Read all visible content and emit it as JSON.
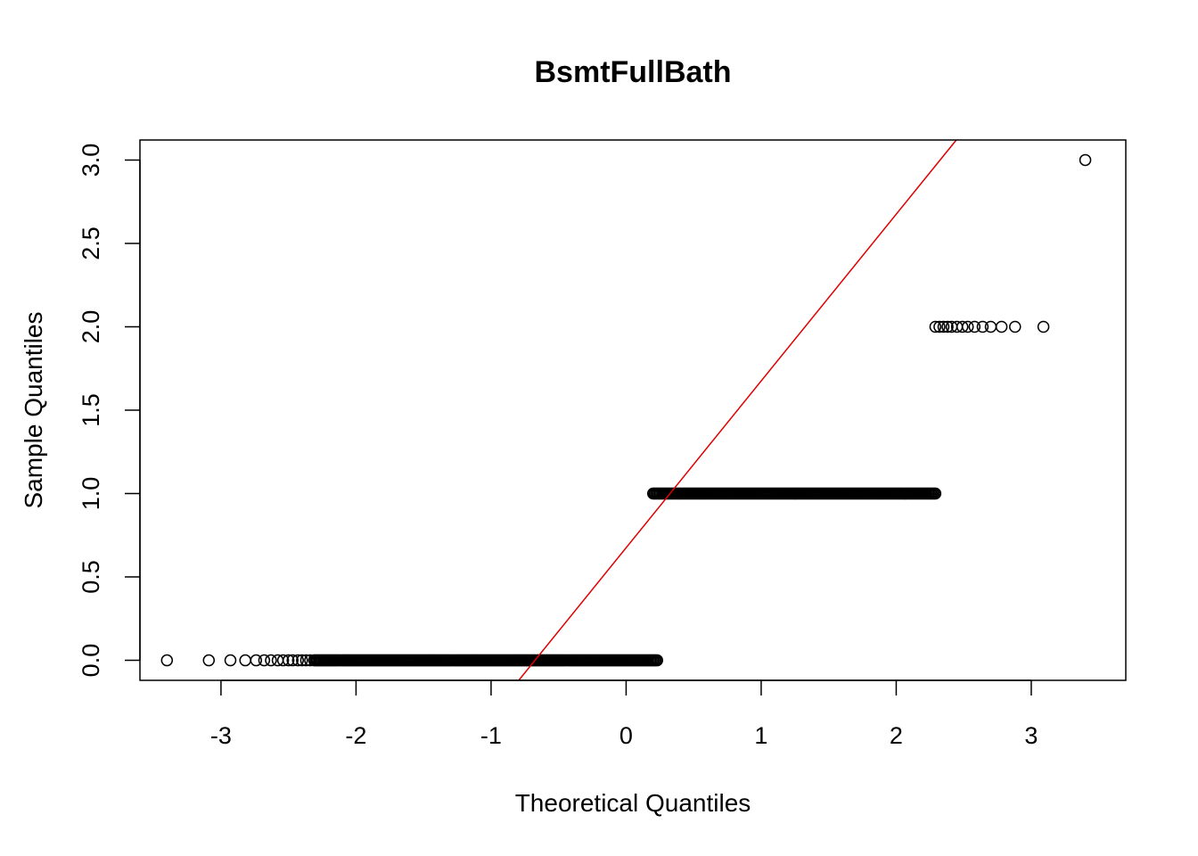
{
  "chart_data": {
    "type": "scatter",
    "title": "BsmtFullBath",
    "xlabel": "Theoretical Quantiles",
    "ylabel": "Sample Quantiles",
    "xlim": [
      -3.6,
      3.7
    ],
    "ylim": [
      -0.12,
      3.12
    ],
    "x_ticks": [
      -3,
      -2,
      -1,
      0,
      1,
      2,
      3
    ],
    "x_tick_labels": [
      "-3",
      "-2",
      "-1",
      "0",
      "1",
      "2",
      "3"
    ],
    "y_ticks": [
      0.0,
      0.5,
      1.0,
      1.5,
      2.0,
      2.5,
      3.0
    ],
    "y_tick_labels": [
      "0.0",
      "0.5",
      "1.0",
      "1.5",
      "2.0",
      "2.5",
      "3.0"
    ],
    "grid": false,
    "marker": "open-circle",
    "point_color": "#000000",
    "line_color": "#e00000",
    "reference_line": {
      "slope": 1.0,
      "intercept": 0.675,
      "label": "qqline"
    },
    "series": [
      {
        "level": 0,
        "x": [
          -3.4,
          -3.09,
          -2.93,
          -2.82,
          -2.74,
          -2.68,
          -2.63,
          -2.58,
          -2.54,
          -2.5,
          -2.47,
          -2.43,
          -2.4,
          -2.37,
          -2.34,
          -2.31
        ],
        "dense_range": [
          -2.3,
          0.23
        ]
      },
      {
        "level": 1,
        "x": [],
        "dense_range": [
          0.2,
          2.29
        ]
      },
      {
        "level": 2,
        "x": [
          2.29,
          2.32,
          2.35,
          2.38,
          2.41,
          2.45,
          2.49,
          2.53,
          2.58,
          2.64,
          2.7,
          2.78,
          2.88,
          3.09
        ]
      },
      {
        "level": 3,
        "x": [
          3.4
        ]
      }
    ]
  }
}
